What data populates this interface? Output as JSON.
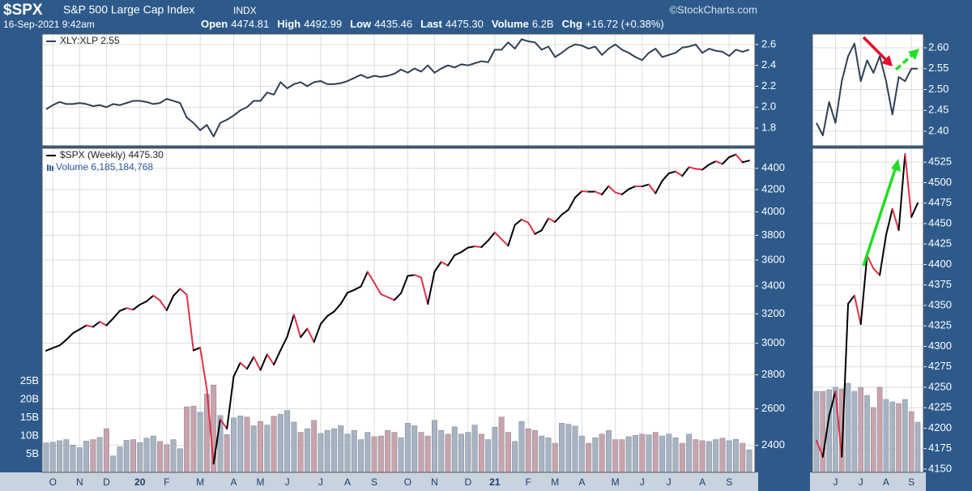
{
  "header": {
    "symbol": "$SPX",
    "name": "S&P 500 Large Cap Index",
    "exchange": "INDX",
    "source": "©StockCharts.com",
    "date": "16-Sep-2021 9:42am",
    "stats": [
      {
        "label": "Open",
        "value": "4474.81"
      },
      {
        "label": "High",
        "value": "4492.99"
      },
      {
        "label": "Low",
        "value": "4435.46"
      },
      {
        "label": "Last",
        "value": "4475.30"
      },
      {
        "label": "Volume",
        "value": "6.2B"
      },
      {
        "label": "Chg",
        "value": "+16.72 (+0.38%)"
      }
    ]
  },
  "chart_data": [
    {
      "type": "line",
      "grid": true,
      "ylim": [
        1.63,
        2.7
      ],
      "yticks": [
        1.8,
        {
          "value": 2,
          "label": "2.0"
        },
        2.2,
        2.4,
        2.6
      ],
      "series": [
        {
          "name": "XLY:XLP 2.55",
          "color": "#2f3f55",
          "values": [
            1.98,
            2.02,
            2.05,
            2.03,
            2.03,
            2.04,
            2.03,
            2.01,
            2.02,
            2.0,
            2.03,
            2.02,
            2.04,
            2.06,
            2.06,
            2.05,
            2.03,
            2.04,
            2.08,
            2.06,
            2.04,
            1.9,
            1.85,
            1.78,
            1.83,
            1.72,
            1.85,
            1.88,
            1.92,
            1.97,
            2.0,
            2.06,
            2.06,
            2.14,
            2.12,
            2.24,
            2.18,
            2.22,
            2.24,
            2.2,
            2.24,
            2.25,
            2.22,
            2.22,
            2.23,
            2.25,
            2.28,
            2.31,
            2.28,
            2.3,
            2.29,
            2.3,
            2.32,
            2.36,
            2.33,
            2.37,
            2.34,
            2.4,
            2.33,
            2.37,
            2.4,
            2.38,
            2.41,
            2.4,
            2.42,
            2.44,
            2.43,
            2.55,
            2.55,
            2.62,
            2.56,
            2.65,
            2.63,
            2.62,
            2.55,
            2.58,
            2.48,
            2.52,
            2.57,
            2.6,
            2.59,
            2.56,
            2.58,
            2.5,
            2.56,
            2.6,
            2.55,
            2.52,
            2.48,
            2.45,
            2.52,
            2.56,
            2.48,
            2.5,
            2.52,
            2.57,
            2.58,
            2.6,
            2.52,
            2.56,
            2.54,
            2.53,
            2.49,
            2.55,
            2.53,
            2.55
          ]
        }
      ]
    },
    {
      "type": "line",
      "grid": true,
      "log_scale": true,
      "ylim": [
        2262,
        4597
      ],
      "yticks": [
        2400,
        2600,
        2800,
        3000,
        3200,
        3400,
        3600,
        3800,
        4000,
        4200,
        4400
      ],
      "y2lim": [
        0,
        89
      ],
      "y2ticks": [
        {
          "value": 5,
          "label": "5B"
        },
        {
          "value": 10,
          "label": "10B"
        },
        {
          "value": 15,
          "label": "15B"
        },
        {
          "value": 20,
          "label": "20B"
        },
        {
          "value": 25,
          "label": "25B"
        }
      ],
      "categories": [
        null,
        "O",
        null,
        null,
        null,
        "N",
        null,
        null,
        null,
        "D",
        null,
        null,
        null,
        null,
        "20",
        null,
        null,
        null,
        "F",
        null,
        null,
        null,
        null,
        "M",
        null,
        null,
        null,
        null,
        "A",
        null,
        null,
        null,
        "M",
        null,
        null,
        null,
        "J",
        null,
        null,
        null,
        null,
        "J",
        null,
        null,
        null,
        "A",
        null,
        null,
        null,
        "S",
        null,
        null,
        null,
        null,
        "O",
        null,
        null,
        null,
        "N",
        null,
        null,
        null,
        null,
        "D",
        null,
        null,
        null,
        "21",
        null,
        null,
        null,
        null,
        "F",
        null,
        null,
        null,
        "M",
        null,
        null,
        null,
        "A",
        null,
        null,
        null,
        null,
        "M",
        null,
        null,
        null,
        "J",
        null,
        null,
        null,
        "J",
        null,
        null,
        null,
        null,
        "A",
        null,
        null,
        null,
        "S",
        null,
        null,
        null
      ],
      "series": [
        {
          "name": "$SPX (Weekly) 4475.30",
          "color": "#000000",
          "down_color": "#e0304a",
          "values": [
            2952,
            2970,
            2986,
            3023,
            3067,
            3093,
            3120,
            3110,
            3145,
            3120,
            3168,
            3221,
            3240,
            3230,
            3265,
            3289,
            3330,
            3295,
            3225,
            3328,
            3380,
            3337,
            2954,
            2972,
            2711,
            2305,
            2541,
            2489,
            2790,
            2875,
            2837,
            2912,
            2830,
            2929,
            2863,
            2955,
            3044,
            3194,
            3041,
            3098,
            3009,
            3130,
            3185,
            3216,
            3271,
            3351,
            3372,
            3397,
            3508,
            3426,
            3340,
            3319,
            3298,
            3348,
            3477,
            3484,
            3465,
            3270,
            3509,
            3585,
            3557,
            3638,
            3663,
            3699,
            3709,
            3703,
            3756,
            3824,
            3768,
            3714,
            3887,
            3934,
            3906,
            3811,
            3842,
            3943,
            3913,
            3975,
            4019,
            4128,
            4185,
            4180,
            4181,
            4155,
            4232,
            4173,
            4156,
            4204,
            4230,
            4229,
            4247,
            4166,
            4281,
            4352,
            4369,
            4327,
            4411,
            4395,
            4387,
            4436,
            4468,
            4442,
            4509,
            4535,
            4458,
            4475
          ]
        },
        {
          "name": "Volume 6,185,184,768",
          "type": "bar",
          "axis": "y2",
          "color": "#a8b3c2",
          "down_color": "#c9a3ac",
          "values": [
            8.1,
            8.3,
            8.7,
            9.0,
            7.5,
            6.8,
            8.6,
            9.0,
            9.6,
            12.0,
            4.5,
            7.0,
            8.8,
            9.0,
            8.2,
            9.4,
            10.0,
            8.5,
            7.6,
            9.0,
            6.5,
            18.0,
            18.2,
            16.5,
            21.5,
            24.0,
            15.6,
            10.4,
            15.0,
            15.5,
            15.2,
            12.8,
            14.0,
            13.0,
            15.4,
            16.0,
            17.0,
            13.8,
            11.0,
            12.0,
            14.3,
            10.7,
            11.5,
            12.0,
            12.8,
            10.5,
            11.5,
            9.0,
            11.0,
            9.8,
            10.0,
            11.5,
            11.0,
            9.5,
            13.5,
            12.8,
            11.0,
            10.0,
            14.3,
            11.5,
            10.5,
            12.5,
            10.5,
            11.0,
            13.0,
            10.5,
            9.0,
            12.4,
            15.2,
            11.0,
            8.5,
            14.0,
            12.0,
            11.5,
            10.0,
            9.5,
            8.0,
            13.5,
            13.2,
            12.7,
            10.0,
            8.0,
            9.5,
            10.5,
            11.5,
            9.0,
            9.0,
            9.8,
            10.2,
            10.5,
            10.3,
            11.0,
            10.0,
            10.5,
            9.5,
            8.0,
            10.5,
            9.0,
            8.7,
            8.5,
            9.0,
            9.4,
            8.7,
            9.1,
            8.0,
            6.2
          ]
        }
      ]
    },
    {
      "type": "line",
      "grid": true,
      "ylim": [
        2.365,
        2.633
      ],
      "yticks": [
        {
          "value": 2.4,
          "label": "2.40"
        },
        2.45,
        {
          "value": 2.5,
          "label": "2.50"
        },
        2.55,
        {
          "value": 2.6,
          "label": "2.60"
        }
      ],
      "series": [
        {
          "color": "#2f3f55",
          "values": [
            2.42,
            2.39,
            2.47,
            2.42,
            2.52,
            2.58,
            2.61,
            2.52,
            2.57,
            2.54,
            2.58,
            2.52,
            2.44,
            2.53,
            2.52,
            2.55,
            2.55
          ]
        }
      ]
    },
    {
      "type": "line",
      "grid": true,
      "ylim": [
        4146,
        4542
      ],
      "yticks": [
        4150,
        4175,
        4200,
        4225,
        4250,
        4275,
        4300,
        4325,
        4350,
        4375,
        4400,
        4425,
        4450,
        4475,
        4500,
        4525
      ],
      "y2lim": [
        0,
        40
      ],
      "categories": [
        null,
        null,
        null,
        "J",
        null,
        null,
        null,
        "J",
        null,
        null,
        null,
        "A",
        null,
        null,
        null,
        "S",
        null
      ],
      "series": [
        {
          "color": "#000000",
          "down_color": "#e0304a",
          "values": [
            4185,
            4165,
            4215,
            4245,
            4165,
            4352,
            4362,
            4327,
            4411,
            4395,
            4387,
            4436,
            4468,
            4442,
            4535,
            4458,
            4475
          ]
        },
        {
          "type": "bar",
          "axis": "y2",
          "color": "#a8b3c2",
          "down_color": "#c9a3ac",
          "values": [
            10.0,
            10.0,
            10.2,
            10.5,
            10.3,
            11.0,
            10.0,
            10.5,
            9.5,
            8.0,
            10.5,
            9.0,
            8.7,
            8.5,
            9.0,
            7.5,
            6.2
          ]
        }
      ]
    }
  ]
}
